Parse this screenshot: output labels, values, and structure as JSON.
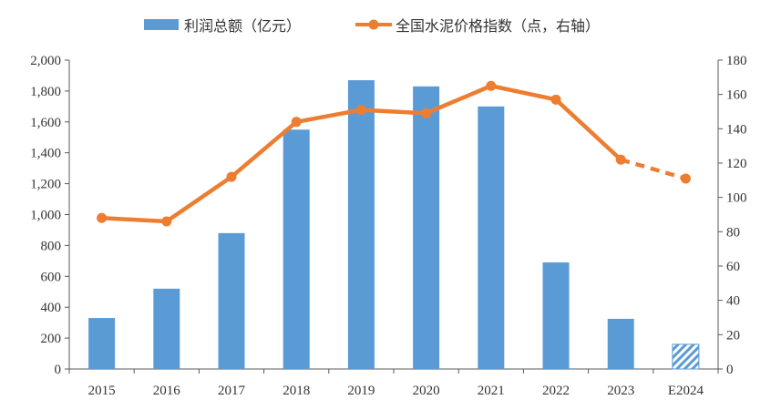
{
  "chart_data": {
    "type": "bar",
    "categories": [
      "2015",
      "2016",
      "2017",
      "2018",
      "2019",
      "2020",
      "2021",
      "2022",
      "2023",
      "E2024"
    ],
    "series": [
      {
        "name": "利润总额（亿元）",
        "type": "bar",
        "axis": "left",
        "color": "#5B9BD5",
        "values": [
          330,
          520,
          880,
          1550,
          1870,
          1830,
          1700,
          690,
          325,
          160
        ],
        "estimated_last": true
      },
      {
        "name": "全国水泥价格指数（点，右轴）",
        "type": "line",
        "axis": "right",
        "color": "#ED7D31",
        "values": [
          88,
          86,
          112,
          144,
          151,
          149,
          165,
          157,
          122,
          111
        ],
        "dashed_from_index": 8
      }
    ],
    "y_left": {
      "ylim": [
        0,
        2000
      ],
      "ticks": [
        "0",
        "200",
        "400",
        "600",
        "800",
        "1,000",
        "1,200",
        "1,400",
        "1,600",
        "1,800",
        "2,000"
      ]
    },
    "y_right": {
      "ylim": [
        0,
        180
      ],
      "ticks": [
        "0",
        "20",
        "40",
        "60",
        "80",
        "100",
        "120",
        "140",
        "160",
        "180"
      ]
    },
    "legend": "top",
    "grid": false
  }
}
